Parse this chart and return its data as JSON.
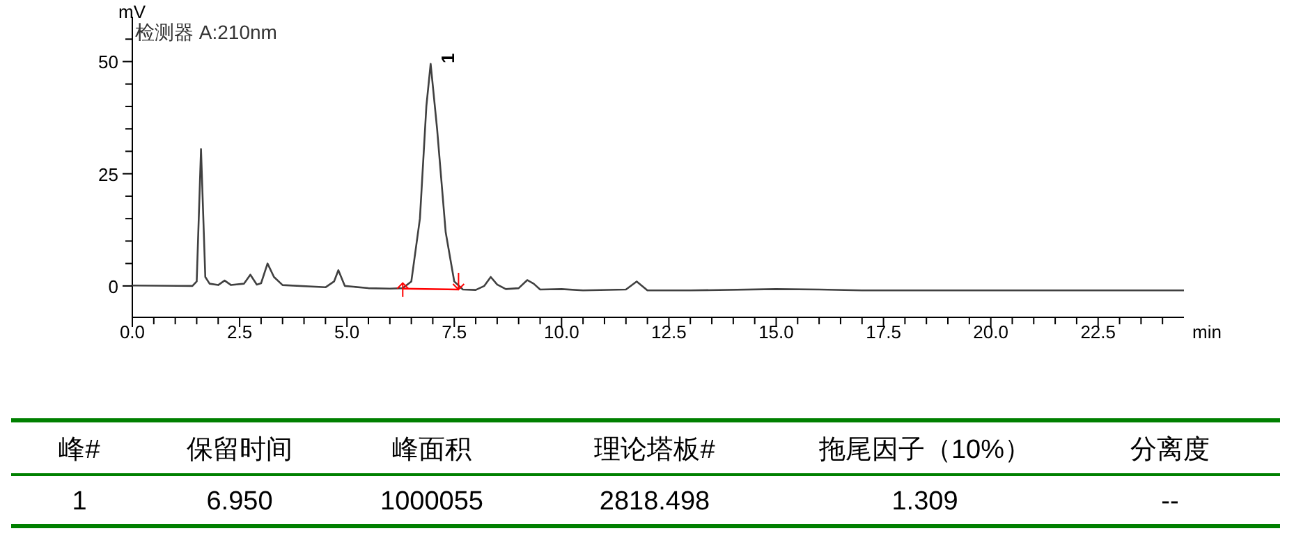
{
  "chart_data": {
    "type": "line",
    "xlabel": "min",
    "ylabel": "mV",
    "x": [
      0,
      1.4,
      1.5,
      1.6,
      1.7,
      1.8,
      2.0,
      2.15,
      2.3,
      2.6,
      2.75,
      2.9,
      3.0,
      3.15,
      3.3,
      3.5,
      4.5,
      4.7,
      4.8,
      4.95,
      5.5,
      6.0,
      6.3,
      6.5,
      6.7,
      6.85,
      6.95,
      7.1,
      7.3,
      7.5,
      7.7,
      8.0,
      8.2,
      8.35,
      8.5,
      8.7,
      9.0,
      9.2,
      9.35,
      9.5,
      10.0,
      10.5,
      11.5,
      11.75,
      12.0,
      13.0,
      15.0,
      16.0,
      17.0,
      20.0,
      23.0,
      24.5
    ],
    "series": [
      {
        "color": "#404040",
        "values": [
          0.1,
          0.0,
          1,
          30.5,
          2,
          0.5,
          0.2,
          1.2,
          0.2,
          0.5,
          2.5,
          0.3,
          0.6,
          5,
          2,
          0.2,
          -0.3,
          1,
          3.5,
          0,
          -0.5,
          -0.6,
          -0.5,
          1,
          15,
          40,
          49.5,
          35,
          12,
          1,
          -0.8,
          -0.9,
          0,
          2,
          0.3,
          -0.7,
          -0.5,
          1.3,
          0.5,
          -0.8,
          -0.7,
          -1,
          -0.8,
          1,
          -1,
          -1,
          -0.7,
          -0.8,
          -1,
          -1,
          -1,
          -1
        ]
      },
      {
        "type": "line",
        "color": "#ff0000",
        "x": [
          6.3,
          7.6
        ],
        "values": [
          -0.6,
          -0.8
        ]
      }
    ],
    "xlim": [
      0,
      24.5
    ],
    "ylim": [
      -7,
      60
    ],
    "xticks": [
      {
        "value": 0,
        "label": "0.0"
      },
      {
        "value": 0.5,
        "label": null
      },
      {
        "value": 1.0,
        "label": null
      },
      {
        "value": 1.5,
        "label": null
      },
      {
        "value": 2.0,
        "label": null
      },
      {
        "value": 2.5,
        "label": "2.5"
      },
      {
        "value": 3.0,
        "label": null
      },
      {
        "value": 3.5,
        "label": null
      },
      {
        "value": 4.0,
        "label": null
      },
      {
        "value": 4.5,
        "label": null
      },
      {
        "value": 5,
        "label": "5.0"
      },
      {
        "value": 5.5,
        "label": null
      },
      {
        "value": 6.0,
        "label": null
      },
      {
        "value": 6.5,
        "label": null
      },
      {
        "value": 7.0,
        "label": null
      },
      {
        "value": 7.5,
        "label": "7.5"
      },
      {
        "value": 8.0,
        "label": null
      },
      {
        "value": 8.5,
        "label": null
      },
      {
        "value": 9.0,
        "label": null
      },
      {
        "value": 9.5,
        "label": null
      },
      {
        "value": 10,
        "label": "10.0"
      },
      {
        "value": 10.5,
        "label": null
      },
      {
        "value": 11.0,
        "label": null
      },
      {
        "value": 11.5,
        "label": null
      },
      {
        "value": 12.0,
        "label": null
      },
      {
        "value": 12.5,
        "label": "12.5"
      },
      {
        "value": 13.0,
        "label": null
      },
      {
        "value": 13.5,
        "label": null
      },
      {
        "value": 14.0,
        "label": null
      },
      {
        "value": 14.5,
        "label": null
      },
      {
        "value": 15,
        "label": "15.0"
      },
      {
        "value": 15.5,
        "label": null
      },
      {
        "value": 16.0,
        "label": null
      },
      {
        "value": 16.5,
        "label": null
      },
      {
        "value": 17.0,
        "label": null
      },
      {
        "value": 17.5,
        "label": "17.5"
      },
      {
        "value": 18.0,
        "label": null
      },
      {
        "value": 18.5,
        "label": null
      },
      {
        "value": 19.0,
        "label": null
      },
      {
        "value": 19.5,
        "label": null
      },
      {
        "value": 20,
        "label": "20.0"
      },
      {
        "value": 20.5,
        "label": null
      },
      {
        "value": 21.0,
        "label": null
      },
      {
        "value": 21.5,
        "label": null
      },
      {
        "value": 22.0,
        "label": null
      },
      {
        "value": 22.5,
        "label": "22.5"
      },
      {
        "value": 23.0,
        "label": null
      },
      {
        "value": 23.5,
        "label": null
      },
      {
        "value": 24.0,
        "label": null
      }
    ],
    "yticks": [
      0,
      {
        "value": 5,
        "label": null
      },
      {
        "value": 10,
        "label": null
      },
      {
        "value": 15,
        "label": null
      },
      {
        "value": 20,
        "label": null
      },
      25,
      {
        "value": 30,
        "label": null
      },
      {
        "value": 35,
        "label": null
      },
      {
        "value": 40,
        "label": null
      },
      {
        "value": 45,
        "label": null
      },
      50,
      {
        "value": 55,
        "label": null
      }
    ],
    "grid": false,
    "line_style": "solid",
    "annotations": [
      "检测器 A:210nm",
      {
        "text": "1",
        "x": 6.95,
        "y": 49.5
      },
      "峰#",
      "保留时间",
      "峰面积",
      "理论塔板#",
      "拖尾因子（10%）",
      "分离度",
      "1",
      "6.950",
      "1000055",
      "2818.498",
      "1.309",
      "--"
    ]
  }
}
